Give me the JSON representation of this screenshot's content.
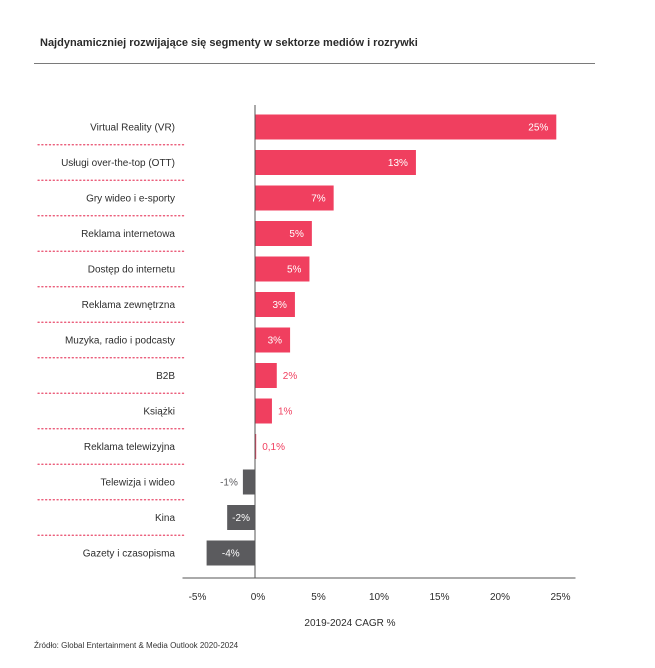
{
  "colors": {
    "positive": "#f03f5f",
    "negative": "#5b5b5e",
    "separator": "#e8496a",
    "axis": "#555555",
    "text": "#2d2d2d"
  },
  "chart_data": {
    "type": "bar",
    "orientation": "horizontal",
    "title": "Najdynamiczniej rozwijające się segmenty w sektorze mediów i rozrywki",
    "xlabel": "2019-2024 CAGR %",
    "ylabel": "",
    "xlim": [
      -5,
      25
    ],
    "xticks": [
      {
        "value": -5,
        "label": "-5%"
      },
      {
        "value": 0,
        "label": "0%"
      },
      {
        "value": 5,
        "label": "5%"
      },
      {
        "value": 10,
        "label": "10%"
      },
      {
        "value": 15,
        "label": "15%"
      },
      {
        "value": 20,
        "label": "20%"
      },
      {
        "value": 25,
        "label": "25%"
      }
    ],
    "categories": [
      "Virtual Reality (VR)",
      "Usługi over-the-top (OTT)",
      "Gry wideo i e-sporty",
      "Reklama internetowa",
      "Dostęp do internetu",
      "Reklama zewnętrzna",
      "Muzyka, radio i podcasty",
      "B2B",
      "Książki",
      "Reklama telewizyjna",
      "Telewizja i wideo",
      "Kina",
      "Gazety i czasopisma"
    ],
    "values": [
      24.9,
      13.3,
      6.5,
      4.7,
      4.5,
      3.3,
      2.9,
      1.8,
      1.4,
      0.1,
      -1.0,
      -2.3,
      -4.0
    ],
    "data_labels": [
      "25%",
      "13%",
      "7%",
      "5%",
      "5%",
      "3%",
      "3%",
      "2%",
      "1%",
      "0,1%",
      "-1%",
      "-2%",
      "-4%"
    ]
  },
  "source": "Źródło: Global Entertainment & Media Outlook 2020-2024"
}
